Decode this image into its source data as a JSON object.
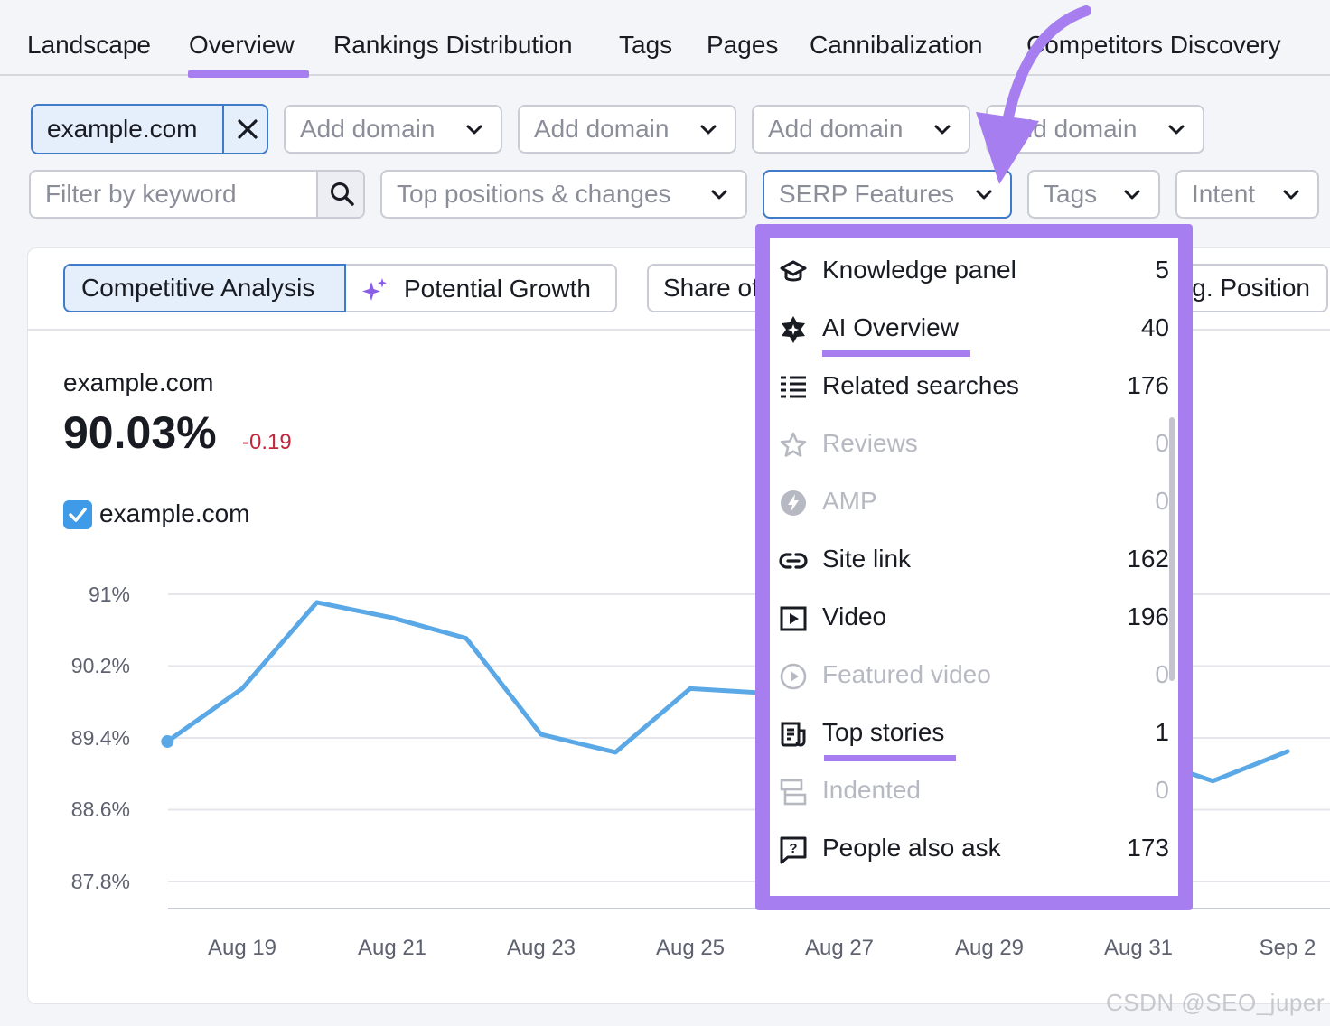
{
  "tabs": [
    {
      "label": "Landscape",
      "active": false
    },
    {
      "label": "Overview",
      "active": true
    },
    {
      "label": "Rankings Distribution",
      "active": false
    },
    {
      "label": "Tags",
      "active": false
    },
    {
      "label": "Pages",
      "active": false
    },
    {
      "label": "Cannibalization",
      "active": false
    },
    {
      "label": "Competitors Discovery",
      "active": false
    }
  ],
  "domains": {
    "selected": "example.com",
    "add_label": "Add domain"
  },
  "filters": {
    "keyword_placeholder": "Filter by keyword",
    "positions": "Top positions & changes",
    "serp": "SERP Features",
    "tags": "Tags",
    "intent": "Intent"
  },
  "view_tabs": {
    "competitive": "Competitive Analysis",
    "growth": "Potential Growth",
    "share": "Share of Voice",
    "avg_position": "Avg. Position"
  },
  "metric": {
    "domain": "example.com",
    "value": "90.03%",
    "change": "-0.19",
    "legend_label": "example.com",
    "legend_checked": true
  },
  "serp_menu": [
    {
      "label": "Knowledge panel",
      "count": "5",
      "icon": "graduation-cap-icon",
      "disabled": false,
      "highlight": false
    },
    {
      "label": "AI Overview",
      "count": "40",
      "icon": "sparkle-badge-icon",
      "disabled": false,
      "highlight": true
    },
    {
      "label": "Related searches",
      "count": "176",
      "icon": "list-icon",
      "disabled": false,
      "highlight": false
    },
    {
      "label": "Reviews",
      "count": "0",
      "icon": "star-icon",
      "disabled": true,
      "highlight": false
    },
    {
      "label": "AMP",
      "count": "0",
      "icon": "bolt-icon",
      "disabled": true,
      "highlight": false
    },
    {
      "label": "Site link",
      "count": "162",
      "icon": "link-icon",
      "disabled": false,
      "highlight": false
    },
    {
      "label": "Video",
      "count": "196",
      "icon": "video-icon",
      "disabled": false,
      "highlight": false
    },
    {
      "label": "Featured video",
      "count": "0",
      "icon": "play-circle-icon",
      "disabled": true,
      "highlight": false
    },
    {
      "label": "Top stories",
      "count": "1",
      "icon": "news-icon",
      "disabled": false,
      "highlight": true
    },
    {
      "label": "Indented",
      "count": "0",
      "icon": "indent-icon",
      "disabled": true,
      "highlight": false
    },
    {
      "label": "People also ask",
      "count": "173",
      "icon": "question-bubble-icon",
      "disabled": false,
      "highlight": false
    }
  ],
  "chart_data": {
    "type": "line",
    "y_ticks": [
      "91%",
      "90.2%",
      "89.4%",
      "88.6%",
      "87.8%"
    ],
    "ylim": [
      87.8,
      91.0
    ],
    "x_ticks": [
      "Aug 19",
      "Aug 21",
      "Aug 23",
      "Aug 25",
      "Aug 27",
      "Aug 29",
      "Aug 31",
      "Sep 2"
    ],
    "series": [
      {
        "color": "#5aa8e6",
        "points": [
          [
            "Aug 18",
            89.36
          ],
          [
            "Aug 19",
            89.95
          ],
          [
            "Aug 20",
            90.91
          ],
          [
            "Aug 21",
            90.74
          ],
          [
            "Aug 22",
            90.51
          ],
          [
            "Aug 23",
            89.44
          ],
          [
            "Aug 24",
            89.24
          ],
          [
            "Aug 25",
            89.95
          ],
          [
            "Aug 26",
            89.9
          ],
          [
            "Aug 30",
            88.9
          ],
          [
            "Aug 31",
            89.2
          ],
          [
            "Sep 1",
            88.92
          ],
          [
            "Sep 2",
            89.25
          ]
        ]
      }
    ]
  },
  "colors": {
    "accent": "#a67ef0",
    "selected_chip": "#3f7bc9",
    "negative": "#c2273c",
    "line": "#5aa8e6"
  },
  "watermark": "CSDN @SEO_juper"
}
